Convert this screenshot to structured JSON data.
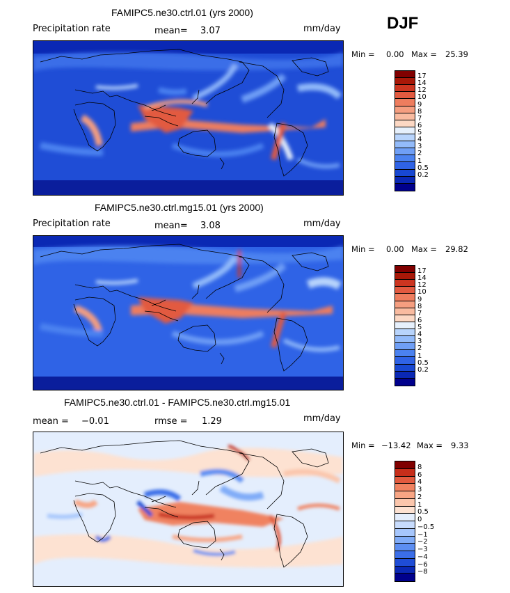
{
  "season": "DJF",
  "palettes": {
    "full": [
      "#00008c",
      "#0a28b4",
      "#1848d2",
      "#2f63e6",
      "#4b82f0",
      "#6f9ff6",
      "#93bbfa",
      "#b8d4fc",
      "#e6f0fc",
      "#fcd8c4",
      "#f9bba0",
      "#f59e80",
      "#ee7d5e",
      "#e25a40",
      "#cc3520",
      "#a81808",
      "#800000"
    ],
    "diff": [
      "#00008c",
      "#0a28b4",
      "#1f4dd6",
      "#3b6ee8",
      "#5c8ef2",
      "#80acf8",
      "#a6c6fc",
      "#c8dcfd",
      "#e4eefd",
      "#fde2d2",
      "#fbc6ac",
      "#f8a584",
      "#f08260",
      "#e25a3e",
      "#c72e1a",
      "#800000"
    ]
  },
  "panels": [
    {
      "title": "FAMIPC5.ne30.ctrl.01 (yrs 2000)",
      "left_label": "Precipitation rate",
      "mean_label": "mean=",
      "mean_value": "3.07",
      "rmse_label": "",
      "rmse_value": "",
      "units": "mm/day",
      "min_label": "Min =",
      "min_value": "0.00",
      "max_label": "Max =",
      "max_value": "25.39",
      "palette": "full",
      "levels": [
        "17",
        "14",
        "12",
        "10",
        "9",
        "8",
        "7",
        "6",
        "5",
        "4",
        "3",
        "2",
        "1",
        "0.5",
        "0.2"
      ]
    },
    {
      "title": "FAMIPC5.ne30.ctrl.mg15.01 (yrs 2000)",
      "left_label": "Precipitation rate",
      "mean_label": "mean=",
      "mean_value": "3.08",
      "rmse_label": "",
      "rmse_value": "",
      "units": "mm/day",
      "min_label": "Min =",
      "min_value": "0.00",
      "max_label": "Max =",
      "max_value": "29.82",
      "palette": "full",
      "levels": [
        "17",
        "14",
        "12",
        "10",
        "9",
        "8",
        "7",
        "6",
        "5",
        "4",
        "3",
        "2",
        "1",
        "0.5",
        "0.2"
      ]
    },
    {
      "title": "FAMIPC5.ne30.ctrl.01 - FAMIPC5.ne30.ctrl.mg15.01",
      "left_label": "",
      "mean_label": "mean =",
      "mean_value": "−0.01",
      "rmse_label": "rmse =",
      "rmse_value": "1.29",
      "units": "mm/day",
      "min_label": "Min =",
      "min_value": "−13.42",
      "max_label": "Max =",
      "max_value": "9.33",
      "palette": "diff",
      "levels": [
        "8",
        "6",
        "4",
        "3",
        "2",
        "1",
        "0.5",
        "0",
        "−0.5",
        "−1",
        "−2",
        "−3",
        "−4",
        "−6",
        "−8"
      ]
    }
  ]
}
